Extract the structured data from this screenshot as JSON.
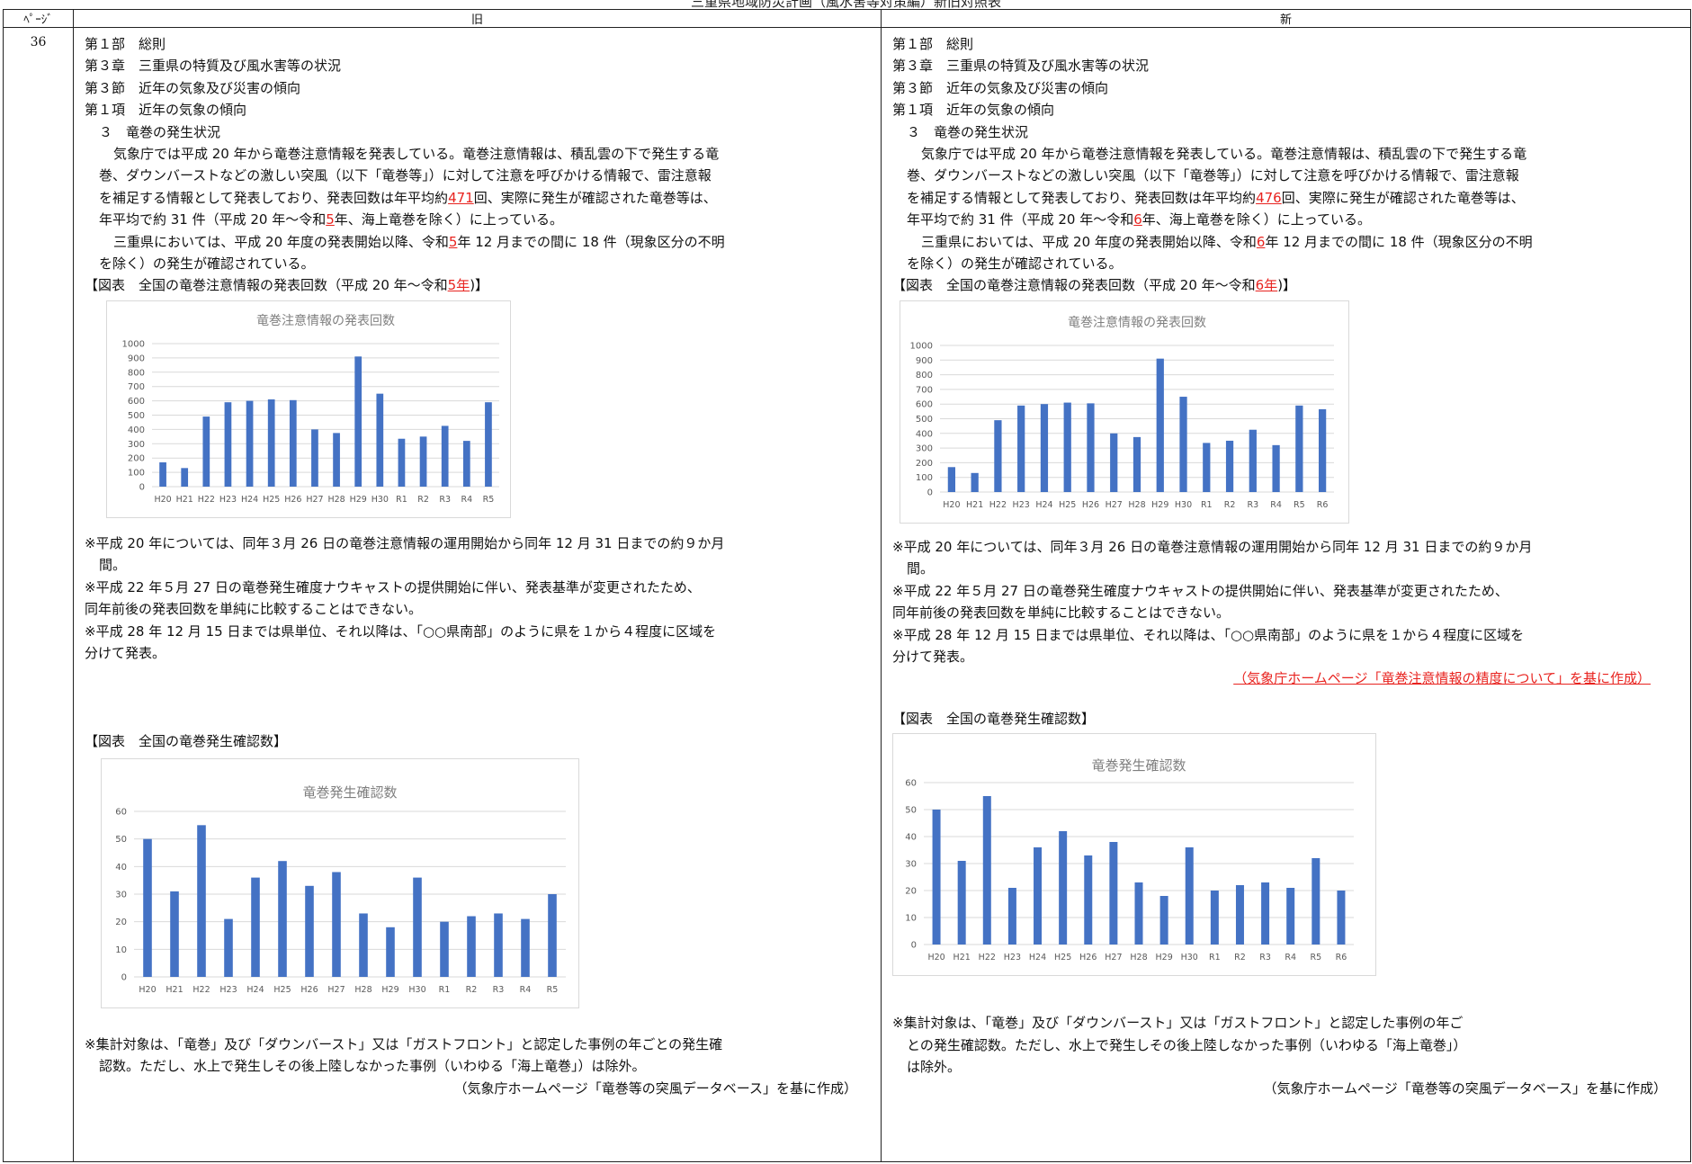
{
  "doc_title": "三重県地域防災計画（風水害等対策編）新旧対照表",
  "header": {
    "page_label": "ﾍﾟｰｼﾞ",
    "old_label": "旧",
    "new_label": "新"
  },
  "page_number": "36",
  "old": {
    "headings": [
      "第１部　総則",
      "第３章　三重県の特質及び風水害等の状況",
      "第３節　近年の気象及び災害の傾向",
      "第１項　近年の気象の傾向",
      "３　竜巻の発生状況"
    ],
    "p1": [
      "気象庁では平成 20 年から竜巻注意情報を発表している。竜巻注意情報は、積乱雲の下で発生する竜",
      "巻、ダウンバーストなどの激しい突風（以下「竜巻等」）に対して注意を呼びかける情報で、雷注意報",
      "を補足する情報として発表しており、発表回数は年平均約"
    ],
    "p1_count": "471",
    "p1_rest": "回、実際に発生が確認された竜巻等は、",
    "p1_last_a": "年平均で約 31 件（平成 20 年～令和",
    "year_red": "5",
    "p1_last_b": "年、海上竜巻を除く）に上っている。",
    "p2_a": "三重県においては、平成 20 年度の発表開始以降、令和",
    "p2_b": "年 12 月までの間に 18 件（現象区分の不明",
    "p2_c": "を除く）の発生が確認されている。",
    "fig1_a": "【図表　全国の竜巻注意情報の発表回数（平成 20 年～令和",
    "fig1_red": "5年",
    "fig1_b": ")】",
    "notes1": [
      "※平成 20 年については、同年３月 26 日の竜巻注意情報の運用開始から同年 12 月 31 日までの約９か月",
      "間。",
      "※平成 22 年５月 27 日の竜巻発生確度ナウキャストの提供開始に伴い、発表基準が変更されたため、",
      "同年前後の発表回数を単純に比較することはできない。",
      "※平成 28 年 12 月 15 日までは県単位、それ以降は、「○○県南部」のように県を１から４程度に区域を",
      "分けて発表。"
    ],
    "fig2": "【図表　全国の竜巻発生確認数】",
    "notes2": [
      "※集計対象は、「竜巻」及び「ダウンバースト」又は「ガストフロント」と認定した事例の年ごとの発生確",
      "認数。ただし、水上で発生しその後上陸しなかった事例（いわゆる「海上竜巻」）は除外。"
    ],
    "source2": "（気象庁ホームページ「竜巻等の突風データベース」を基に作成）"
  },
  "new": {
    "headings": [
      "第１部　総則",
      "第３章　三重県の特質及び風水害等の状況",
      "第３節　近年の気象及び災害の傾向",
      "第１項　近年の気象の傾向",
      "３　竜巻の発生状況"
    ],
    "p1": [
      "気象庁では平成 20 年から竜巻注意情報を発表している。竜巻注意情報は、積乱雲の下で発生する竜",
      "巻、ダウンバーストなどの激しい突風（以下「竜巻等」）に対して注意を呼びかける情報で、雷注意報",
      "を補足する情報として発表しており、発表回数は年平均約"
    ],
    "p1_count": "476",
    "p1_rest": "回、実際に発生が確認された竜巻等は、",
    "p1_last_a": "年平均で約 31 件（平成 20 年～令和",
    "year_red": "6",
    "p1_last_b": "年、海上竜巻を除く）に上っている。",
    "p2_a": "三重県においては、平成 20 年度の発表開始以降、令和",
    "p2_b": "年 12 月までの間に 18 件（現象区分の不明",
    "p2_c": "を除く）の発生が確認されている。",
    "fig1_a": "【図表　全国の竜巻注意情報の発表回数（平成 20 年～令和",
    "fig1_red": "6年",
    "fig1_b": ")】",
    "notes1": [
      "※平成 20 年については、同年３月 26 日の竜巻注意情報の運用開始から同年 12 月 31 日までの約９か月",
      "間。",
      "※平成 22 年５月 27 日の竜巻発生確度ナウキャストの提供開始に伴い、発表基準が変更されたため、",
      "同年前後の発表回数を単純に比較することはできない。",
      "※平成 28 年 12 月 15 日までは県単位、それ以降は、「○○県南部」のように県を１から４程度に区域を",
      "分けて発表。"
    ],
    "source1": "（気象庁ホームページ「竜巻注意情報の精度について」を基に作成）",
    "fig2": "【図表　全国の竜巻発生確認数】",
    "notes2": [
      "※集計対象は、「竜巻」及び「ダウンバースト」又は「ガストフロント」と認定した事例の年ご",
      "との発生確認数。ただし、水上で発生しその後上陸しなかった事例（いわゆる「海上竜巻」）",
      "は除外。"
    ],
    "source2": "（気象庁ホームページ「竜巻等の突風データベース」を基に作成）"
  },
  "chart_data": [
    {
      "id": "old-advisories",
      "type": "bar",
      "title": "竜巻注意情報の発表回数",
      "categories": [
        "H20",
        "H21",
        "H22",
        "H23",
        "H24",
        "H25",
        "H26",
        "H27",
        "H28",
        "H29",
        "H30",
        "R1",
        "R2",
        "R3",
        "R4",
        "R5"
      ],
      "values": [
        170,
        130,
        490,
        590,
        600,
        610,
        605,
        400,
        375,
        910,
        650,
        335,
        350,
        425,
        320,
        590
      ],
      "ylim": [
        0,
        1000
      ],
      "yticks": [
        0,
        100,
        200,
        300,
        400,
        500,
        600,
        700,
        800,
        900,
        1000
      ],
      "grid": true,
      "color": "#4472C4"
    },
    {
      "id": "new-advisories",
      "type": "bar",
      "title": "竜巻注意情報の発表回数",
      "categories": [
        "H20",
        "H21",
        "H22",
        "H23",
        "H24",
        "H25",
        "H26",
        "H27",
        "H28",
        "H29",
        "H30",
        "R1",
        "R2",
        "R3",
        "R4",
        "R5",
        "R6"
      ],
      "values": [
        170,
        130,
        490,
        590,
        600,
        610,
        605,
        400,
        375,
        910,
        650,
        335,
        350,
        425,
        320,
        590,
        565
      ],
      "ylim": [
        0,
        1000
      ],
      "yticks": [
        0,
        100,
        200,
        300,
        400,
        500,
        600,
        700,
        800,
        900,
        1000
      ],
      "grid": true,
      "color": "#4472C4"
    },
    {
      "id": "old-tornadoes",
      "type": "bar",
      "title": "竜巻発生確認数",
      "categories": [
        "H20",
        "H21",
        "H22",
        "H23",
        "H24",
        "H25",
        "H26",
        "H27",
        "H28",
        "H29",
        "H30",
        "R1",
        "R2",
        "R3",
        "R4",
        "R5"
      ],
      "values": [
        50,
        31,
        55,
        21,
        36,
        42,
        33,
        38,
        23,
        18,
        36,
        20,
        22,
        23,
        21,
        30
      ],
      "ylim": [
        0,
        60
      ],
      "yticks": [
        0,
        10,
        20,
        30,
        40,
        50,
        60
      ],
      "grid": true,
      "color": "#4472C4"
    },
    {
      "id": "new-tornadoes",
      "type": "bar",
      "title": "竜巻発生確認数",
      "categories": [
        "H20",
        "H21",
        "H22",
        "H23",
        "H24",
        "H25",
        "H26",
        "H27",
        "H28",
        "H29",
        "H30",
        "R1",
        "R2",
        "R3",
        "R4",
        "R5",
        "R6"
      ],
      "values": [
        50,
        31,
        55,
        21,
        36,
        42,
        33,
        38,
        23,
        18,
        36,
        20,
        22,
        23,
        21,
        32,
        20
      ],
      "ylim": [
        0,
        60
      ],
      "yticks": [
        0,
        10,
        20,
        30,
        40,
        50,
        60
      ],
      "grid": true,
      "color": "#4472C4"
    }
  ]
}
